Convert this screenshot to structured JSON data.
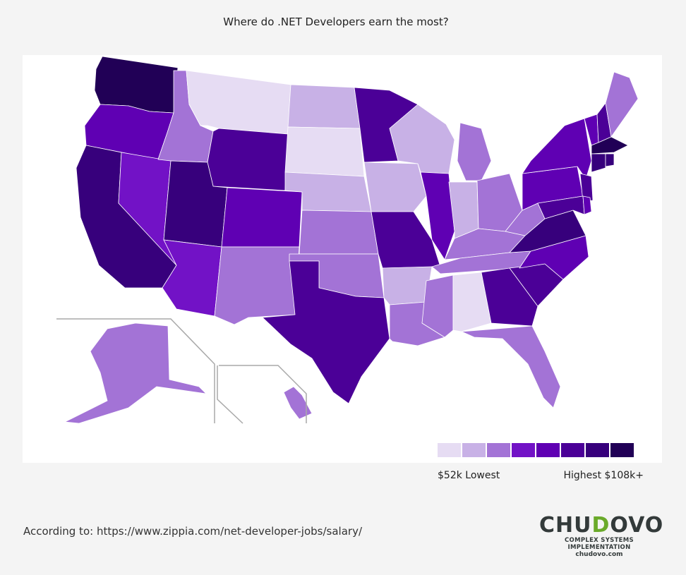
{
  "title": "Where do .NET Developers earn the most?",
  "legend": {
    "low_label": "$52k Lowest",
    "high_label": "Highest $108k+",
    "colors": [
      "#e6dcf3",
      "#c8b1e6",
      "#a373d6",
      "#7212c6",
      "#5f00b3",
      "#4b0097",
      "#37007c",
      "#210056"
    ]
  },
  "source": "According to: https://www.zippia.com/net-developer-jobs/salary/",
  "logo": {
    "name_part1": "CHU",
    "name_accent": "D",
    "name_part2": "OVO",
    "tagline": "COMPLEX SYSTEMS IMPLEMENTATION",
    "url": "chudovo.com"
  },
  "state_levels": {
    "WA": 8,
    "OR": 5,
    "CA": 7,
    "NV": 4,
    "ID": 3,
    "MT": 1,
    "WY": 6,
    "UT": 7,
    "AZ": 4,
    "CO": 5,
    "NM": 3,
    "ND": 2,
    "SD": 1,
    "NE": 2,
    "KS": 3,
    "OK": 3,
    "TX": 6,
    "MN": 6,
    "IA": 2,
    "MO": 6,
    "AR": 2,
    "LA": 3,
    "WI": 2,
    "IL": 5,
    "MI": 3,
    "IN": 2,
    "OH": 3,
    "KY": 3,
    "TN": 3,
    "MS": 3,
    "AL": 1,
    "GA": 6,
    "FL": 3,
    "SC": 6,
    "NC": 5,
    "VA": 7,
    "WV": 3,
    "PA": 5,
    "NY": 5,
    "NJ": 6,
    "MD": 6,
    "DE": 5,
    "VT": 5,
    "NH": 6,
    "ME": 3,
    "MA": 8,
    "CT": 7,
    "RI": 7,
    "AK": 3,
    "HI": 3
  }
}
